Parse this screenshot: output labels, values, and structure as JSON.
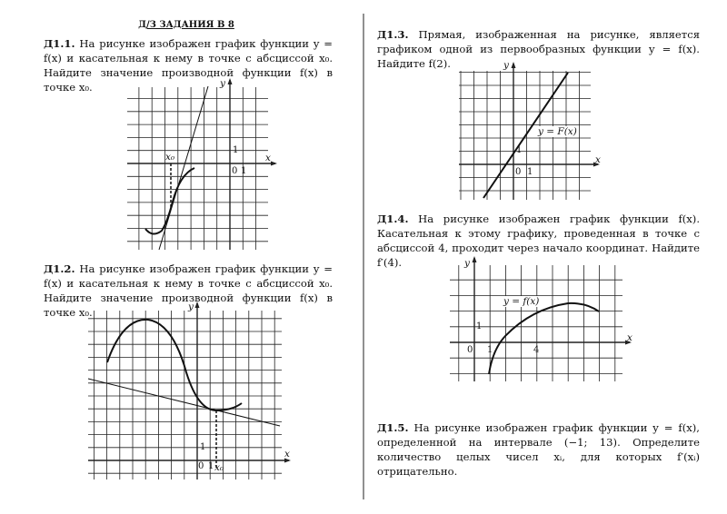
{
  "header": {
    "title": "Д/З ЗАДАНИЯ В 8"
  },
  "problems": [
    {
      "id": "Д1.1.",
      "text": "На рисунке изображен график функции y = f(x) и касательная к нему в точке с абсциссой x₀. Найдите значение производной функции f(x) в точке x₀.",
      "graph": {
        "y_label": "y",
        "x_label": "x",
        "x0_label": "x₀",
        "origin": "0",
        "one_x": "1",
        "one_y": "1"
      }
    },
    {
      "id": "Д1.2.",
      "text": "На рисунке изображен график функции y = f(x) и касательная к нему в точке с абсциссой x₀. Найдите значение производной функции f(x) в точке x₀.",
      "graph": {
        "y_label": "y",
        "x_label": "x",
        "x0_label": "x₀",
        "origin": "0",
        "one_x": "1",
        "one_y": "1"
      }
    },
    {
      "id": "Д1.3.",
      "text": "Прямая, изображенная на рисунке, является графиком одной из первообразных функции y = f(x). Найдите f(2).",
      "graph": {
        "y_label": "y",
        "x_label": "x",
        "curve_label": "y = F(x)",
        "origin": "0",
        "one_x": "1",
        "one_y": "1"
      }
    },
    {
      "id": "Д1.4.",
      "text": "На рисунке изображен график функции f(x). Касательная к этому графику, проведенная в точке с абсциссой 4, проходит через начало координат. Найдите f′(4).",
      "graph": {
        "y_label": "y",
        "x_label": "x",
        "curve_label": "y = f(x)",
        "origin": "0",
        "one_x": "1",
        "one_y": "1",
        "four_x": "4"
      }
    },
    {
      "id": "Д1.5.",
      "text": "На рисунке изображен график функции y = f(x), определенной на интервале (−1; 13). Определите количество целых чисел xᵢ, для которых f′(xᵢ) отрицательно."
    }
  ]
}
